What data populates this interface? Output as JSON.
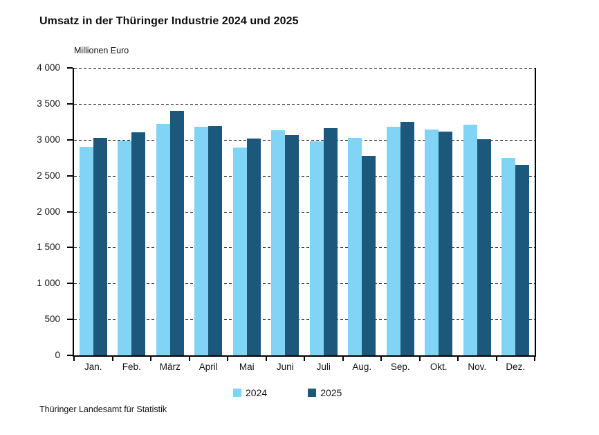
{
  "footer": {
    "source": "Thüringer Landesamt für Statistik"
  },
  "chart_data": {
    "type": "bar",
    "title": "Umsatz in der Thüringer Industrie 2024 und 2025",
    "ylabel": "Millionen Euro",
    "xlabel": "",
    "categories": [
      "Jan.",
      "Feb.",
      "März",
      "April",
      "Mai",
      "Juni",
      "Juli",
      "Aug.",
      "Sep.",
      "Okt.",
      "Nov.",
      "Dez."
    ],
    "series": [
      {
        "name": "2024",
        "color": "#82d4f7",
        "values": [
          2900,
          2990,
          3220,
          3180,
          2890,
          3130,
          2980,
          3030,
          3180,
          3140,
          3210,
          2750
        ]
      },
      {
        "name": "2025",
        "color": "#1b587c",
        "values": [
          3030,
          3100,
          3400,
          3190,
          3020,
          3070,
          3160,
          2780,
          3250,
          3110,
          3010,
          2650
        ]
      }
    ],
    "ylim": [
      0,
      4000
    ],
    "ytick_step": 500,
    "ytick_labels": [
      "0",
      "500",
      "1 000",
      "1 500",
      "2 000",
      "2 500",
      "3 000",
      "3 500",
      "4 000"
    ],
    "grid": "horizontal-dashed",
    "legend_position": "bottom"
  }
}
